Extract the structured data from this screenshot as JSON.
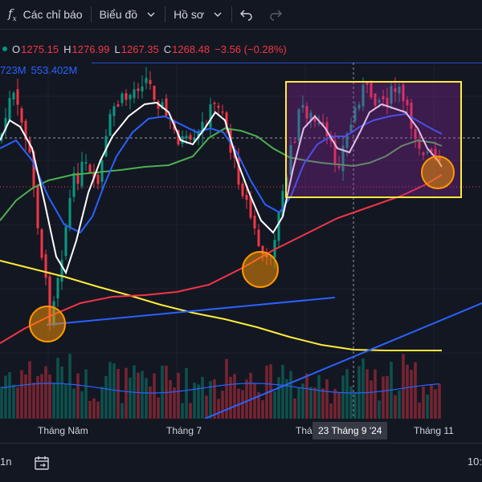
{
  "toolbar": {
    "indicators_label": "Các chỉ báo",
    "chart_type_label": "Biểu đồ",
    "profile_label": "Hồ sơ",
    "fx_icon": "fx-icon",
    "undo_icon": "undo-icon",
    "redo_icon": "redo-icon"
  },
  "legend": {
    "open_label": "O",
    "open": "1275.15",
    "high_label": "H",
    "high": "1276.99",
    "low_label": "L",
    "low": "1267.35",
    "close_label": "C",
    "close": "1268.48",
    "change": "−3.56 (−0.28%)"
  },
  "volume_legend": {
    "value1": "723M",
    "value2": "553.402M"
  },
  "time_axis": {
    "ticks": [
      "Tháng Năm",
      "Tháng 7",
      "Thá",
      "Tháng 11"
    ],
    "cursor_label": "23 Tháng 9 '24"
  },
  "bottom_bar": {
    "range_label": "1n",
    "time_label": "10:"
  },
  "colors": {
    "background": "#131722",
    "up_candle": "#089981",
    "down_candle": "#f23645",
    "ma_white": "#ffffff",
    "ma_blue": "#2962ff",
    "ma_green": "#4caf50",
    "ma_red": "#f23645",
    "ma_yellow": "#ffeb3b",
    "trendline": "#2962ff",
    "highlight_box": "#ffeb3b",
    "circle_marker": "#ff9800"
  }
}
